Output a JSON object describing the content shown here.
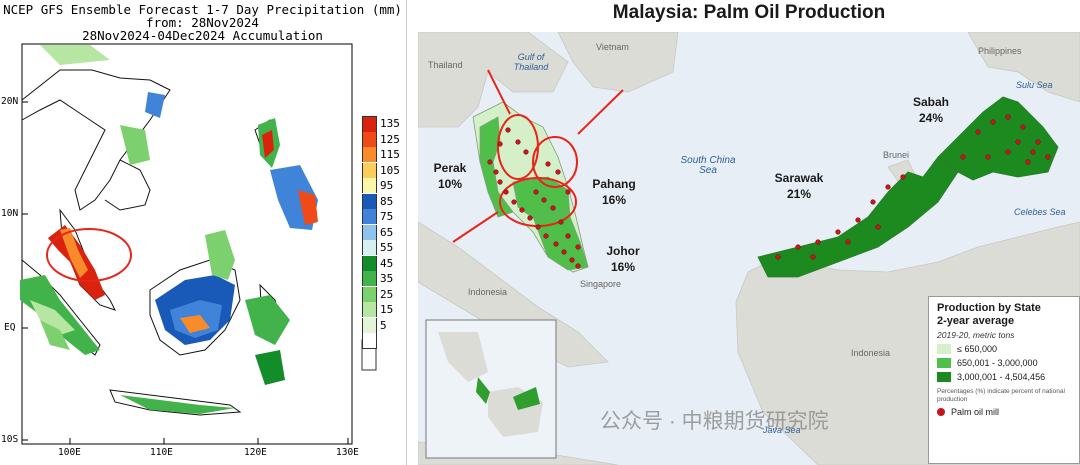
{
  "precip_map": {
    "title_line1": "NCEP GFS Ensemble Forecast 1-7 Day Precipitation (mm)",
    "title_line2": "from: 28Nov2024",
    "title_line3": "28Nov2024-04Dec2024 Accumulation",
    "lat_labels": [
      "20N",
      "10N",
      "EQ",
      "10S"
    ],
    "lon_labels": [
      "100E",
      "110E",
      "120E",
      "130E"
    ],
    "legend": [
      {
        "label": "135",
        "color": "#d9230f"
      },
      {
        "label": "125",
        "color": "#ef4a18"
      },
      {
        "label": "115",
        "color": "#f98b2a"
      },
      {
        "label": "105",
        "color": "#fccd58"
      },
      {
        "label": "95",
        "color": "#fbf7a8"
      },
      {
        "label": "85",
        "color": "#1959b8"
      },
      {
        "label": "75",
        "color": "#3f84d8"
      },
      {
        "label": "65",
        "color": "#8fc2ec"
      },
      {
        "label": "55",
        "color": "#d6f0f2"
      },
      {
        "label": "45",
        "color": "#138d2a"
      },
      {
        "label": "35",
        "color": "#41b34a"
      },
      {
        "label": "25",
        "color": "#7dd06e"
      },
      {
        "label": "15",
        "color": "#b6e6a2"
      },
      {
        "label": "5",
        "color": "#e3f5d8"
      },
      {
        "label": "",
        "color": "#ffffff"
      }
    ]
  },
  "palm_map": {
    "title": "Malaysia: Palm Oil Production",
    "countries": {
      "thailand": "Thailand",
      "vietnam": "Vietnam",
      "philippines": "Philippines",
      "brunei": "Brunei",
      "indonesia_west": "Indonesia",
      "indonesia_east": "Indonesia",
      "singapore": "Singapore"
    },
    "seas": {
      "gulf": "Gulf of Thailand",
      "south_china_sea": "South China Sea",
      "sulu": "Sulu Sea",
      "celebes": "Celebes Sea",
      "java": "Java Sea"
    },
    "states": {
      "perak_name": "Perak",
      "perak_pct": "10%",
      "pahang_name": "Pahang",
      "pahang_pct": "16%",
      "johor_name": "Johor",
      "johor_pct": "16%",
      "sarawak_name": "Sarawak",
      "sarawak_pct": "21%",
      "sabah_name": "Sabah",
      "sabah_pct": "24%"
    },
    "legend": {
      "title1": "Production by State",
      "title2": "2-year average",
      "subtitle": "2019-20, metric tons",
      "classes": [
        {
          "label": "≤ 650,000",
          "color": "#d5efc9"
        },
        {
          "label": "650,001 - 3,000,000",
          "color": "#4fbf4a"
        },
        {
          "label": "3,000,001 - 4,504,456",
          "color": "#1d8a1f"
        }
      ],
      "note": "Percentages (%) indicate percent of national production",
      "mill_label": "Palm oil mill",
      "mill_color": "#c4161c"
    },
    "watermark": "公众号 · 中粮期货研究院"
  }
}
